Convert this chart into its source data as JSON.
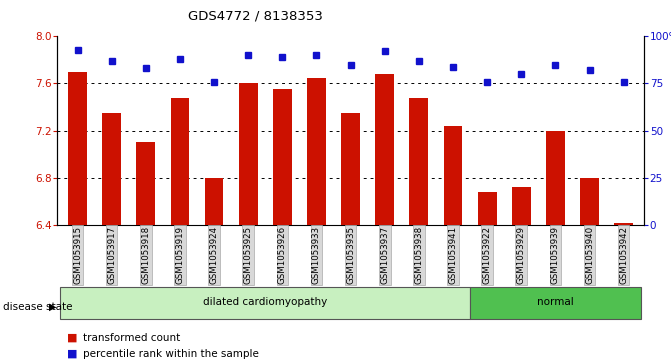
{
  "title": "GDS4772 / 8138353",
  "samples": [
    "GSM1053915",
    "GSM1053917",
    "GSM1053918",
    "GSM1053919",
    "GSM1053924",
    "GSM1053925",
    "GSM1053926",
    "GSM1053933",
    "GSM1053935",
    "GSM1053937",
    "GSM1053938",
    "GSM1053941",
    "GSM1053922",
    "GSM1053929",
    "GSM1053939",
    "GSM1053940",
    "GSM1053942"
  ],
  "bar_values": [
    7.7,
    7.35,
    7.1,
    7.48,
    6.8,
    7.6,
    7.55,
    7.65,
    7.35,
    7.68,
    7.48,
    7.24,
    6.68,
    6.72,
    7.2,
    6.8,
    6.42
  ],
  "percentile_values": [
    93,
    87,
    83,
    88,
    76,
    90,
    89,
    90,
    85,
    92,
    87,
    84,
    76,
    80,
    85,
    82,
    76
  ],
  "disease_groups": [
    {
      "label": "dilated cardiomyopathy",
      "start": 0,
      "end": 11,
      "color": "#c8f0c0"
    },
    {
      "label": "normal",
      "start": 12,
      "end": 16,
      "color": "#50c050"
    }
  ],
  "ylim_left": [
    6.4,
    8.0
  ],
  "ylim_right": [
    0,
    100
  ],
  "yticks_left": [
    6.4,
    6.8,
    7.2,
    7.6,
    8.0
  ],
  "yticks_right": [
    0,
    25,
    50,
    75,
    100
  ],
  "bar_color": "#cc1100",
  "dot_color": "#1111cc",
  "label_bg_color": "#d8d8d8",
  "legend_items": [
    "transformed count",
    "percentile rank within the sample"
  ]
}
